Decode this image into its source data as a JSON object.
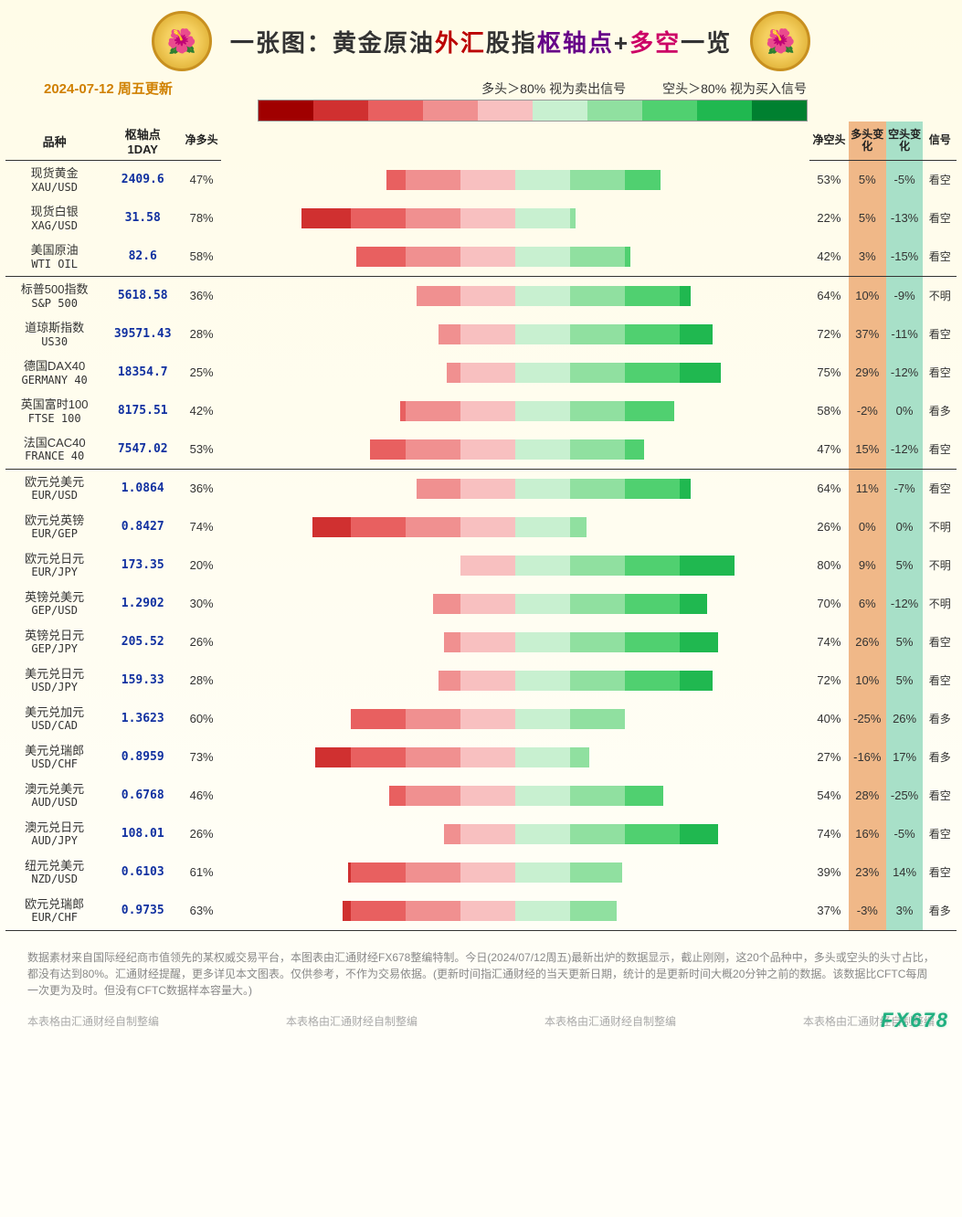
{
  "title_parts": {
    "p1": "一张图：",
    "p2": "黄金原油",
    "p3": "外汇",
    "p4": "股指",
    "p5": "枢轴点",
    "p6": "+",
    "p7": "多空",
    "p8": "一览"
  },
  "date_text": "2024-07-12 周五更新",
  "legend": {
    "sell": "多头＞80% 视为卖出信号",
    "buy": "空头＞80% 视为买入信号"
  },
  "color_scale": [
    "#a00000",
    "#d03030",
    "#e86060",
    "#f09090",
    "#f8c0c0",
    "#c8f0d0",
    "#90e0a0",
    "#50d070",
    "#20b850",
    "#008030"
  ],
  "bar_colors_long": [
    "#f8c0c0",
    "#f09090",
    "#e86060",
    "#d03030",
    "#a00000"
  ],
  "bar_colors_short": [
    "#c8f0d0",
    "#90e0a0",
    "#50d070",
    "#20b850",
    "#008030"
  ],
  "bar_band_size": 20,
  "headers": {
    "name": "品种",
    "pivot": "枢轴点\n1DAY",
    "long": "净多头",
    "short": "净空头",
    "long_chg": "多头变化",
    "short_chg": "空头变化",
    "signal": "信号"
  },
  "columns_bg": {
    "long_chg": "#f0b888",
    "short_chg": "#a8e0c8"
  },
  "groups": [
    {
      "rows": [
        {
          "cn": "现货黄金",
          "en": "XAU/USD",
          "pivot": "2409.6",
          "long": 47,
          "short": 53,
          "long_chg": "5%",
          "short_chg": "-5%",
          "signal": "看空"
        },
        {
          "cn": "现货白银",
          "en": "XAG/USD",
          "pivot": "31.58",
          "long": 78,
          "short": 22,
          "long_chg": "5%",
          "short_chg": "-13%",
          "signal": "看空"
        },
        {
          "cn": "美国原油",
          "en": "WTI OIL",
          "pivot": "82.6",
          "long": 58,
          "short": 42,
          "long_chg": "3%",
          "short_chg": "-15%",
          "signal": "看空"
        }
      ]
    },
    {
      "rows": [
        {
          "cn": "标普500指数",
          "en": "S&P 500",
          "pivot": "5618.58",
          "long": 36,
          "short": 64,
          "long_chg": "10%",
          "short_chg": "-9%",
          "signal": "不明"
        },
        {
          "cn": "道琼斯指数",
          "en": "US30",
          "pivot": "39571.43",
          "long": 28,
          "short": 72,
          "long_chg": "37%",
          "short_chg": "-11%",
          "signal": "看空"
        },
        {
          "cn": "德国DAX40",
          "en": "GERMANY 40",
          "pivot": "18354.7",
          "long": 25,
          "short": 75,
          "long_chg": "29%",
          "short_chg": "-12%",
          "signal": "看空"
        },
        {
          "cn": "英国富时100",
          "en": "FTSE 100",
          "pivot": "8175.51",
          "long": 42,
          "short": 58,
          "long_chg": "-2%",
          "short_chg": "0%",
          "signal": "看多"
        },
        {
          "cn": "法国CAC40",
          "en": "FRANCE 40",
          "pivot": "7547.02",
          "long": 53,
          "short": 47,
          "long_chg": "15%",
          "short_chg": "-12%",
          "signal": "看空"
        }
      ]
    },
    {
      "rows": [
        {
          "cn": "欧元兑美元",
          "en": "EUR/USD",
          "pivot": "1.0864",
          "long": 36,
          "short": 64,
          "long_chg": "11%",
          "short_chg": "-7%",
          "signal": "看空"
        },
        {
          "cn": "欧元兑英镑",
          "en": "EUR/GEP",
          "pivot": "0.8427",
          "long": 74,
          "short": 26,
          "long_chg": "0%",
          "short_chg": "0%",
          "signal": "不明"
        },
        {
          "cn": "欧元兑日元",
          "en": "EUR/JPY",
          "pivot": "173.35",
          "long": 20,
          "short": 80,
          "long_chg": "9%",
          "short_chg": "5%",
          "signal": "不明"
        },
        {
          "cn": "英镑兑美元",
          "en": "GEP/USD",
          "pivot": "1.2902",
          "long": 30,
          "short": 70,
          "long_chg": "6%",
          "short_chg": "-12%",
          "signal": "不明"
        },
        {
          "cn": "英镑兑日元",
          "en": "GEP/JPY",
          "pivot": "205.52",
          "long": 26,
          "short": 74,
          "long_chg": "26%",
          "short_chg": "5%",
          "signal": "看空"
        },
        {
          "cn": "美元兑日元",
          "en": "USD/JPY",
          "pivot": "159.33",
          "long": 28,
          "short": 72,
          "long_chg": "10%",
          "short_chg": "5%",
          "signal": "看空"
        },
        {
          "cn": "美元兑加元",
          "en": "USD/CAD",
          "pivot": "1.3623",
          "long": 60,
          "short": 40,
          "long_chg": "-25%",
          "short_chg": "26%",
          "signal": "看多"
        },
        {
          "cn": "美元兑瑞郎",
          "en": "USD/CHF",
          "pivot": "0.8959",
          "long": 73,
          "short": 27,
          "long_chg": "-16%",
          "short_chg": "17%",
          "signal": "看多"
        },
        {
          "cn": "澳元兑美元",
          "en": "AUD/USD",
          "pivot": "0.6768",
          "long": 46,
          "short": 54,
          "long_chg": "28%",
          "short_chg": "-25%",
          "signal": "看空"
        },
        {
          "cn": "澳元兑日元",
          "en": "AUD/JPY",
          "pivot": "108.01",
          "long": 26,
          "short": 74,
          "long_chg": "16%",
          "short_chg": "-5%",
          "signal": "看空"
        },
        {
          "cn": "纽元兑美元",
          "en": "NZD/USD",
          "pivot": "0.6103",
          "long": 61,
          "short": 39,
          "long_chg": "23%",
          "short_chg": "14%",
          "signal": "看空"
        },
        {
          "cn": "欧元兑瑞郎",
          "en": "EUR/CHF",
          "pivot": "0.9735",
          "long": 63,
          "short": 37,
          "long_chg": "-3%",
          "short_chg": "3%",
          "signal": "看多"
        }
      ]
    }
  ],
  "footer_text": "数据素材来自国际经纪商市值领先的某权威交易平台，本图表由汇通财经FX678整编特制。今日(2024/07/12周五)最新出炉的数据显示，截止刚刚，这20个品种中，多头或空头的头寸占比，都没有达到80%。汇通财经提醒，更多详见本文图表。仅供参考，不作为交易依据。(更新时间指汇通财经的当天更新日期，统计的是更新时间大概20分钟之前的数据。该数据比CFTC每周一次更为及时。但没有CFTC数据样本容量大。)",
  "credit": "本表格由汇通财经自制整编",
  "watermark": "FX678"
}
